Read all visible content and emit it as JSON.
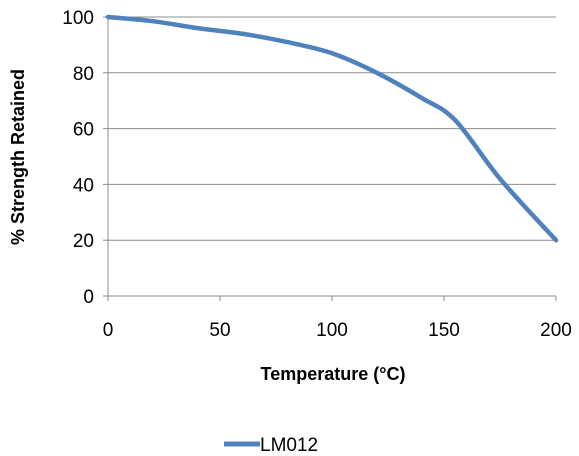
{
  "chart_data": {
    "type": "line",
    "title": "",
    "xlabel": "Temperature (°C)",
    "ylabel": "% Strength Retained",
    "xlim": [
      0,
      200
    ],
    "ylim": [
      0,
      100
    ],
    "x_ticks": [
      "0",
      "50",
      "100",
      "150",
      "200"
    ],
    "y_ticks": [
      "0",
      "20",
      "40",
      "60",
      "80",
      "100"
    ],
    "grid": "horizontal",
    "legend_position": "bottom",
    "series": [
      {
        "name": "LM012",
        "color": "#4F81BD",
        "x": [
          0,
          20,
          40,
          60,
          80,
          100,
          120,
          140,
          155,
          175,
          200
        ],
        "y": [
          100,
          98.5,
          96,
          94,
          91,
          87,
          80,
          71,
          63,
          42,
          20
        ]
      }
    ]
  }
}
